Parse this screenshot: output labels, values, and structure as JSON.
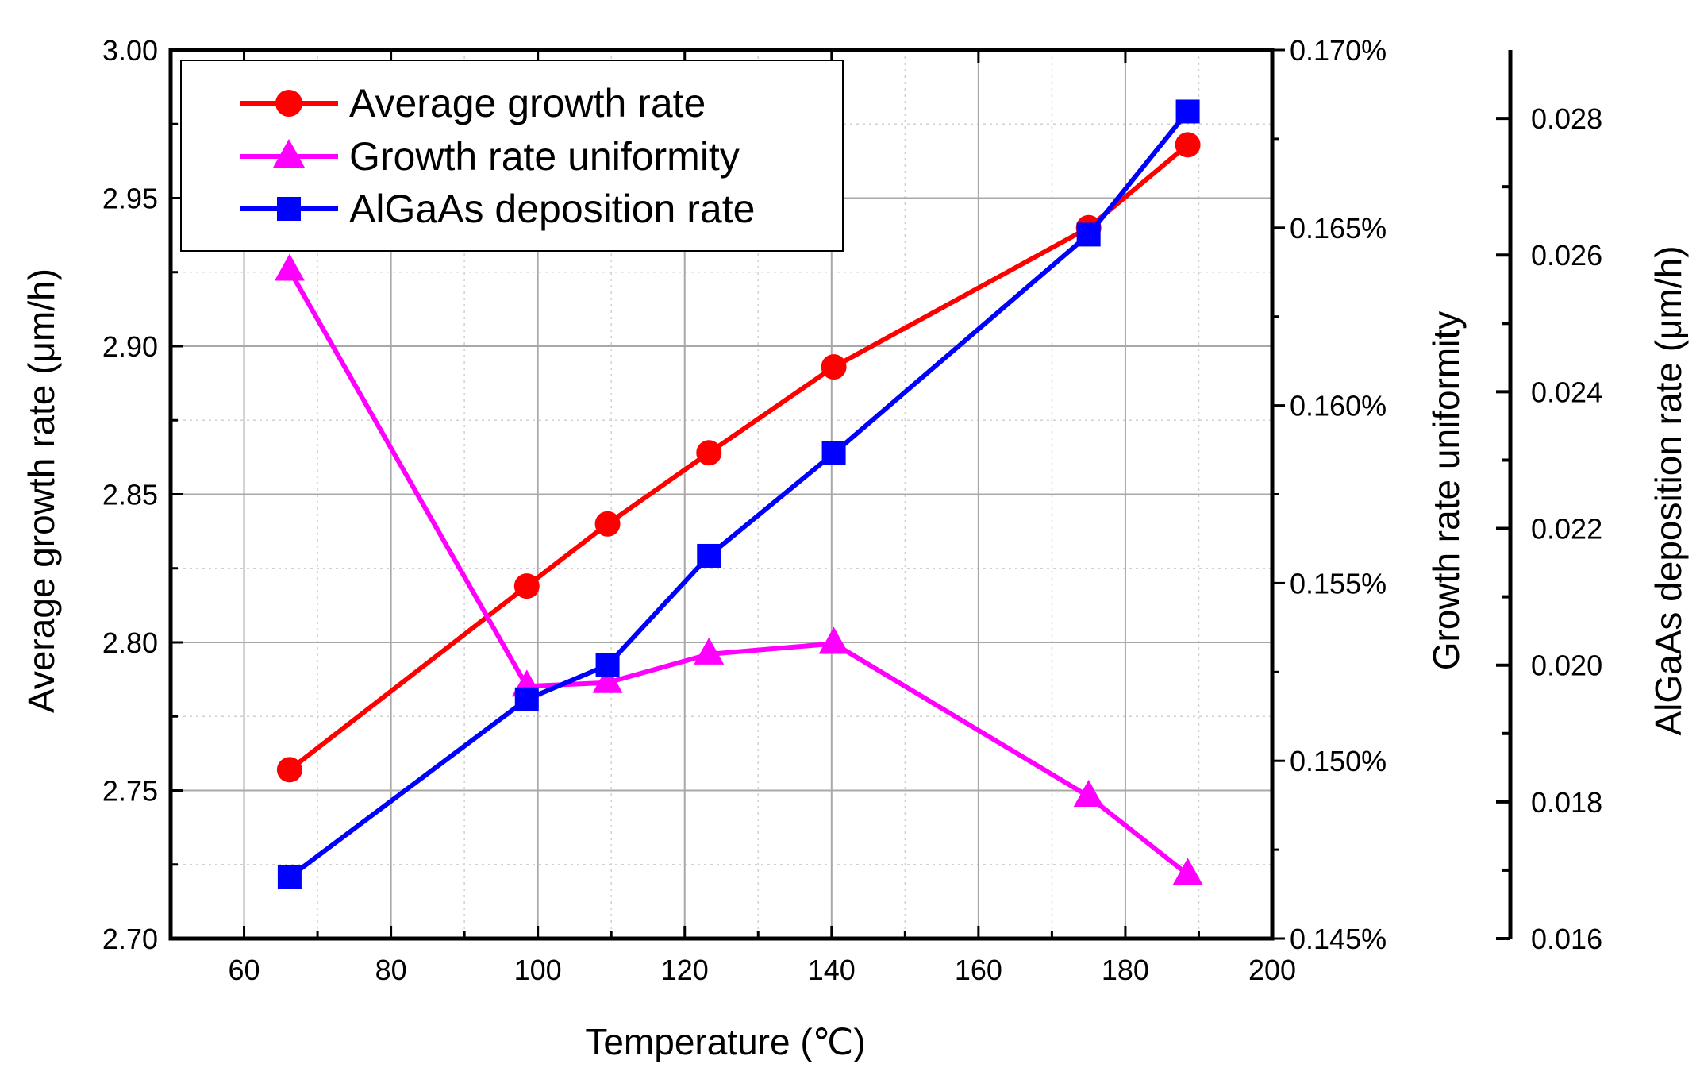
{
  "chart_data": {
    "type": "line",
    "xlabel": "Temperature (℃)",
    "x_axis": {
      "range": [
        50,
        200
      ],
      "ticks": [
        60,
        80,
        100,
        120,
        140,
        160,
        180,
        200
      ]
    },
    "y_axes": [
      {
        "id": "left",
        "label": "Average growth rate (μm/h)",
        "range": [
          2.7,
          3.0
        ],
        "ticks": [
          2.7,
          2.75,
          2.8,
          2.85,
          2.9,
          2.95,
          3.0
        ],
        "tick_labels": [
          "2.70",
          "2.75",
          "2.80",
          "2.85",
          "2.90",
          "2.95",
          "3.00"
        ]
      },
      {
        "id": "right1",
        "label": "Growth rate uniformity",
        "range": [
          0.145,
          0.17
        ],
        "ticks": [
          0.145,
          0.15,
          0.155,
          0.16,
          0.165,
          0.17
        ],
        "tick_labels": [
          "0.145%",
          "0.150%",
          "0.155%",
          "0.160%",
          "0.165%",
          "0.170%"
        ]
      },
      {
        "id": "right2",
        "label": "AlGaAs deposition rate (μm/h)",
        "range": [
          0.016,
          0.029
        ],
        "ticks": [
          0.016,
          0.018,
          0.02,
          0.022,
          0.024,
          0.026,
          0.028
        ],
        "tick_labels": [
          "0.016",
          "0.018",
          "0.020",
          "0.022",
          "0.024",
          "0.026",
          "0.028"
        ]
      }
    ],
    "series": [
      {
        "name": "Average growth rate",
        "axis": "left",
        "color": "#ff0000",
        "marker": "circle",
        "x": [
          66.2,
          98.5,
          109.5,
          123.3,
          140.3,
          175.0,
          188.5
        ],
        "y": [
          2.757,
          2.819,
          2.84,
          2.864,
          2.893,
          2.94,
          2.968
        ]
      },
      {
        "name": "Growth rate uniformity",
        "axis": "right1",
        "color": "#ff00ff",
        "marker": "triangle",
        "x": [
          66.2,
          98.5,
          109.5,
          123.3,
          140.3,
          175.0,
          188.5
        ],
        "y": [
          0.1638,
          0.1521,
          0.1522,
          0.153,
          0.1533,
          0.149,
          0.1468
        ]
      },
      {
        "name": "AlGaAs deposition rate",
        "axis": "right2",
        "color": "#0000ff",
        "marker": "square",
        "x": [
          66.2,
          98.5,
          109.5,
          123.3,
          140.3,
          175.0,
          188.5
        ],
        "y": [
          0.0169,
          0.0195,
          0.02,
          0.0216,
          0.0231,
          0.0263,
          0.0281
        ]
      }
    ],
    "legend": {
      "position": "top-left",
      "entries": [
        "Average growth rate",
        "Growth rate uniformity",
        "AlGaAs deposition rate"
      ]
    },
    "grid": true
  }
}
